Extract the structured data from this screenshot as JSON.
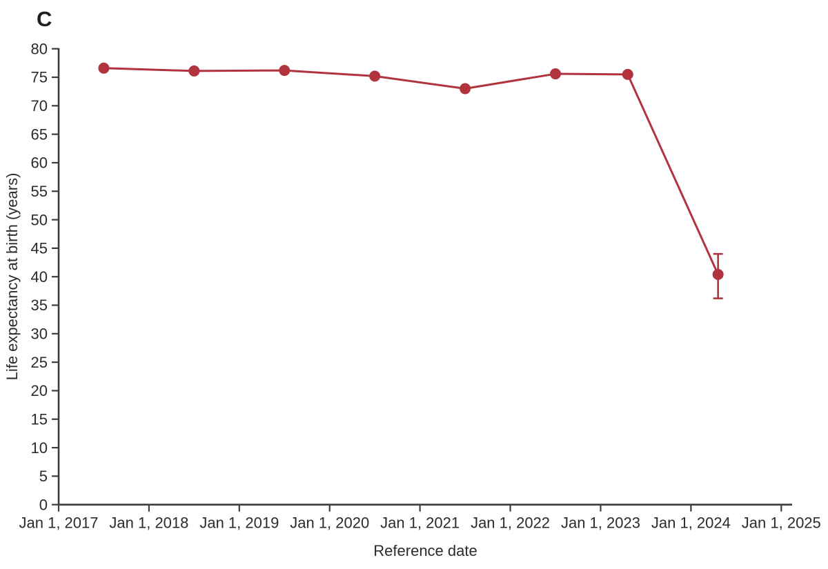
{
  "panel_label": "C",
  "colors": {
    "series": "#B0333E",
    "axis": "#3c3c3c",
    "text": "#2b2b2b",
    "background": "#ffffff"
  },
  "chart_data": {
    "type": "line",
    "title": "",
    "xlabel": "Reference date",
    "ylabel": "Life expectancy at birth (years)",
    "xlim": [
      2017,
      2025.12
    ],
    "ylim": [
      0,
      80
    ],
    "grid": false,
    "legend": "none",
    "x_ticks": [
      {
        "value": 2017,
        "label": "Jan 1, 2017"
      },
      {
        "value": 2018,
        "label": "Jan 1, 2018"
      },
      {
        "value": 2019,
        "label": "Jan 1, 2019"
      },
      {
        "value": 2020,
        "label": "Jan 1, 2020"
      },
      {
        "value": 2021,
        "label": "Jan 1, 2021"
      },
      {
        "value": 2022,
        "label": "Jan 1, 2022"
      },
      {
        "value": 2023,
        "label": "Jan 1, 2023"
      },
      {
        "value": 2024,
        "label": "Jan 1, 2024"
      },
      {
        "value": 2025,
        "label": "Jan 1, 2025"
      }
    ],
    "y_ticks": [
      0,
      5,
      10,
      15,
      20,
      25,
      30,
      35,
      40,
      45,
      50,
      55,
      60,
      65,
      70,
      75,
      80
    ],
    "series": [
      {
        "name": "Life expectancy at birth",
        "color": "#B0333E",
        "marker": "circle",
        "points": [
          {
            "x": 2017.5,
            "y": 76.6
          },
          {
            "x": 2018.5,
            "y": 76.1
          },
          {
            "x": 2019.5,
            "y": 76.2
          },
          {
            "x": 2020.5,
            "y": 75.2
          },
          {
            "x": 2021.5,
            "y": 73.0
          },
          {
            "x": 2022.5,
            "y": 75.6
          },
          {
            "x": 2023.3,
            "y": 75.5
          },
          {
            "x": 2024.3,
            "y": 40.4,
            "ci_low": 36.2,
            "ci_high": 44.0
          }
        ]
      }
    ]
  }
}
